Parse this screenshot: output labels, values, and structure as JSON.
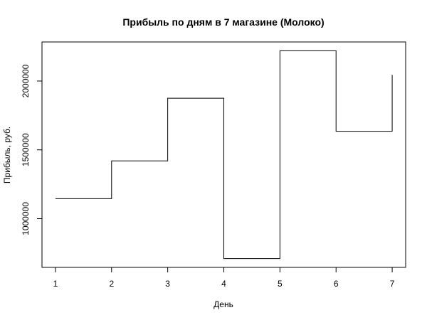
{
  "chart_data": {
    "type": "line",
    "step": "post",
    "title": "Прибыль по дням в 7 магазине (Молоко)",
    "xlabel": "День",
    "ylabel": "Прибыль, руб.",
    "x": [
      1,
      2,
      3,
      4,
      5,
      6,
      7
    ],
    "series": [
      {
        "values": [
          1145000,
          1420000,
          1875000,
          710000,
          2220000,
          1635000,
          2045000
        ],
        "color": "#000000"
      }
    ],
    "xlim": [
      0.76,
      7.24
    ],
    "ylim": [
      646000,
      2284000
    ],
    "xticks": [
      1,
      2,
      3,
      4,
      5,
      6,
      7
    ],
    "yticks": [
      1000000,
      1500000,
      2000000
    ],
    "grid": false
  }
}
